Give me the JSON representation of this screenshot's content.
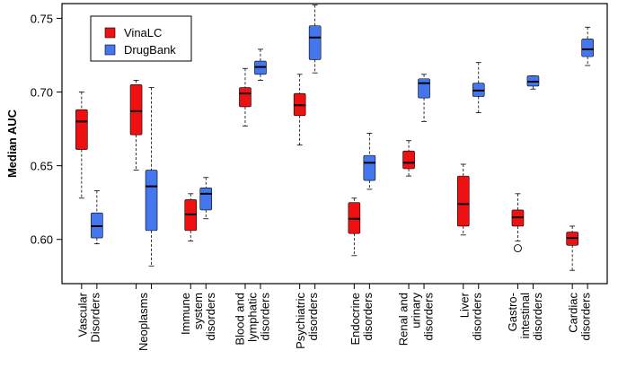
{
  "chart_data": {
    "type": "boxplot",
    "title": "",
    "ylabel": "Median AUC",
    "xlabel": "",
    "ylim": [
      0.57,
      0.76
    ],
    "yticks": [
      0.6,
      0.65,
      0.7,
      0.75
    ],
    "ytick_labels": [
      "0.60",
      "0.65",
      "0.70",
      "0.75"
    ],
    "legend": {
      "position": "top-left",
      "entries": [
        {
          "name": "VinaLC",
          "color": "#ee1111"
        },
        {
          "name": "DrugBank",
          "color": "#4477ee"
        }
      ]
    },
    "categories": [
      {
        "lines": [
          "Vascular",
          "Disorders"
        ]
      },
      {
        "lines": [
          "Neoplasms"
        ]
      },
      {
        "lines": [
          "Immune",
          "system",
          "disorders"
        ]
      },
      {
        "lines": [
          "Blood and",
          "lymphatic",
          "disorders"
        ]
      },
      {
        "lines": [
          "Psychiatric",
          "disorders"
        ]
      },
      {
        "lines": [
          "Endocrine",
          "disorders"
        ]
      },
      {
        "lines": [
          "Renal and",
          "urinary",
          "disorders"
        ]
      },
      {
        "lines": [
          "Liver",
          "disorders"
        ]
      },
      {
        "lines": [
          "Gastro-",
          "intestinal",
          "disorders"
        ]
      },
      {
        "lines": [
          "Cardiac",
          "disorders"
        ]
      }
    ],
    "series": [
      {
        "name": "VinaLC",
        "color": "#ee1111",
        "boxes": [
          {
            "whislo": 0.628,
            "q1": 0.661,
            "med": 0.68,
            "q3": 0.688,
            "whishi": 0.7,
            "fliers": []
          },
          {
            "whislo": 0.647,
            "q1": 0.671,
            "med": 0.687,
            "q3": 0.705,
            "whishi": 0.708,
            "fliers": []
          },
          {
            "whislo": 0.599,
            "q1": 0.606,
            "med": 0.617,
            "q3": 0.627,
            "whishi": 0.631,
            "fliers": []
          },
          {
            "whislo": 0.677,
            "q1": 0.69,
            "med": 0.699,
            "q3": 0.703,
            "whishi": 0.716,
            "fliers": []
          },
          {
            "whislo": 0.664,
            "q1": 0.684,
            "med": 0.691,
            "q3": 0.699,
            "whishi": 0.712,
            "fliers": []
          },
          {
            "whislo": 0.589,
            "q1": 0.604,
            "med": 0.614,
            "q3": 0.625,
            "whishi": 0.628,
            "fliers": []
          },
          {
            "whislo": 0.643,
            "q1": 0.648,
            "med": 0.652,
            "q3": 0.66,
            "whishi": 0.667,
            "fliers": []
          },
          {
            "whislo": 0.603,
            "q1": 0.609,
            "med": 0.624,
            "q3": 0.643,
            "whishi": 0.651,
            "fliers": []
          },
          {
            "whislo": 0.599,
            "q1": 0.609,
            "med": 0.615,
            "q3": 0.62,
            "whishi": 0.631,
            "fliers": [
              0.594
            ]
          },
          {
            "whislo": 0.579,
            "q1": 0.596,
            "med": 0.601,
            "q3": 0.605,
            "whishi": 0.609,
            "fliers": []
          }
        ]
      },
      {
        "name": "DrugBank",
        "color": "#4477ee",
        "boxes": [
          {
            "whislo": 0.597,
            "q1": 0.601,
            "med": 0.609,
            "q3": 0.618,
            "whishi": 0.633,
            "fliers": []
          },
          {
            "whislo": 0.582,
            "q1": 0.606,
            "med": 0.636,
            "q3": 0.647,
            "whishi": 0.703,
            "fliers": []
          },
          {
            "whislo": 0.614,
            "q1": 0.62,
            "med": 0.631,
            "q3": 0.635,
            "whishi": 0.642,
            "fliers": []
          },
          {
            "whislo": 0.708,
            "q1": 0.712,
            "med": 0.717,
            "q3": 0.721,
            "whishi": 0.729,
            "fliers": []
          },
          {
            "whislo": 0.713,
            "q1": 0.722,
            "med": 0.737,
            "q3": 0.745,
            "whishi": 0.759,
            "fliers": []
          },
          {
            "whislo": 0.634,
            "q1": 0.64,
            "med": 0.652,
            "q3": 0.657,
            "whishi": 0.672,
            "fliers": []
          },
          {
            "whislo": 0.68,
            "q1": 0.696,
            "med": 0.706,
            "q3": 0.709,
            "whishi": 0.712,
            "fliers": []
          },
          {
            "whislo": 0.686,
            "q1": 0.697,
            "med": 0.701,
            "q3": 0.706,
            "whishi": 0.72,
            "fliers": []
          },
          {
            "whislo": 0.702,
            "q1": 0.704,
            "med": 0.707,
            "q3": 0.711,
            "whishi": 0.711,
            "fliers": []
          },
          {
            "whislo": 0.718,
            "q1": 0.724,
            "med": 0.729,
            "q3": 0.736,
            "whishi": 0.744,
            "fliers": []
          }
        ]
      }
    ]
  }
}
